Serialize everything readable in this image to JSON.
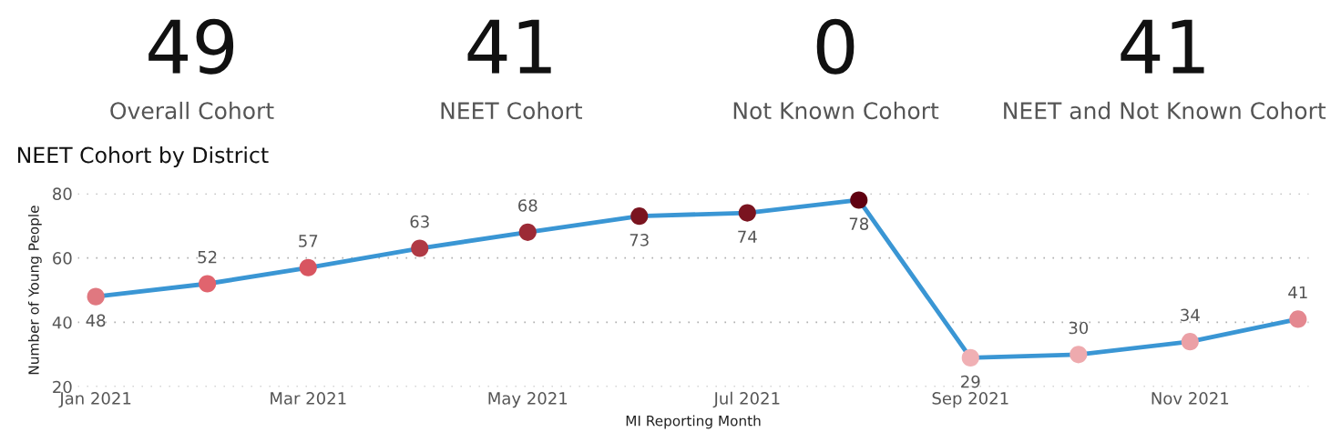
{
  "chart_data": [
    {
      "type": "other",
      "categories": [
        "Overall Cohort",
        "NEET Cohort",
        "Not Known Cohort",
        "NEET and Not Known Cohort"
      ],
      "values": [
        49,
        41,
        0,
        41
      ],
      "data_labels": true
    },
    {
      "type": "line",
      "title": "NEET Cohort by District",
      "xlabel": "MI Reporting Month",
      "ylabel": "Number of Young People",
      "x": [
        "2021-01",
        "2021-02",
        "2021-03",
        "2021-04",
        "2021-05",
        "2021-06",
        "2021-07",
        "2021-08",
        "2021-09",
        "2021-10",
        "2021-11",
        "2021-12"
      ],
      "series": [
        {
          "color": "#3a96d4",
          "values": [
            48,
            52,
            57,
            63,
            68,
            73,
            74,
            78,
            29,
            30,
            34,
            41
          ],
          "colors": [
            "#e07880",
            "#e0646e",
            "#d85560",
            "#b03a45",
            "#9c2a36",
            "#7a1420",
            "#7a1420",
            "#600010",
            "#f0b0b4",
            "#eeaaae",
            "#eba0a6",
            "#e48890"
          ]
        }
      ],
      "xlim": [
        "2020-12-27",
        "2021-12-04"
      ],
      "xticks": [
        {
          "value": "2021-01",
          "label": "Jan 2021"
        },
        {
          "value": "2021-03",
          "label": "Mar 2021"
        },
        {
          "value": "2021-05",
          "label": "May 2021"
        },
        {
          "value": "2021-07",
          "label": "Jul 2021"
        },
        {
          "value": "2021-09",
          "label": "Sep 2021"
        },
        {
          "value": "2021-11",
          "label": "Nov 2021"
        }
      ],
      "ylim": [
        20,
        80
      ],
      "yticks": [
        20,
        40,
        60,
        80
      ],
      "grid": "y",
      "marker": "circle",
      "line_style": "solid",
      "data_labels": true
    }
  ]
}
